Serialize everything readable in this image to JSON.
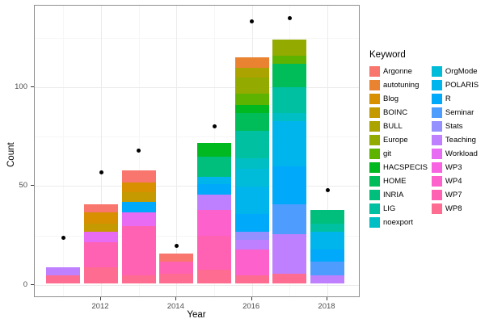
{
  "chart_data": {
    "type": "bar",
    "subtype": "stacked-bar-with-points",
    "title": "",
    "xlabel": "Year",
    "ylabel": "Count",
    "legend_title": "Keyword",
    "legend_position": "right",
    "x": [
      2011,
      2012,
      2013,
      2014,
      2015,
      2016,
      2017,
      2018
    ],
    "x_tick_labels": [
      "2012",
      "2014",
      "2016",
      "2018"
    ],
    "x_major_tick_years": [
      2012,
      2014,
      2016,
      2018
    ],
    "x_minor_grid_years": [
      2011,
      2013,
      2015,
      2017
    ],
    "y_major_ticks": [
      0,
      50,
      100
    ],
    "y_minor_gridlines": [
      25,
      75,
      125
    ],
    "ylim": [
      0,
      141
    ],
    "grid": true,
    "stack_order_bottom_to_top": [
      "WP8",
      "WP7",
      "WP4",
      "WP3",
      "Workload",
      "Teaching",
      "Stats",
      "Seminar",
      "R",
      "POLARIS",
      "OrgMode",
      "noexport",
      "LIG",
      "INRIA",
      "HOME",
      "HACSPECIS",
      "git",
      "Europe",
      "BULL",
      "BOINC",
      "Blog",
      "autotuning",
      "Argonne"
    ],
    "series": [
      {
        "name": "Argonne",
        "color": "#F8766D",
        "values": [
          0,
          4,
          6,
          4,
          0,
          0,
          0,
          0
        ]
      },
      {
        "name": "autotuning",
        "color": "#EA8331",
        "values": [
          0,
          0,
          0,
          0,
          0,
          5,
          0,
          0
        ]
      },
      {
        "name": "Blog",
        "color": "#D89000",
        "values": [
          0,
          6,
          5,
          0,
          0,
          0,
          0,
          0
        ]
      },
      {
        "name": "BOINC",
        "color": "#C49A00",
        "values": [
          0,
          4,
          5,
          0,
          0,
          0,
          0,
          0
        ]
      },
      {
        "name": "BULL",
        "color": "#ABA300",
        "values": [
          0,
          0,
          0,
          0,
          0,
          5,
          0,
          0
        ]
      },
      {
        "name": "Europe",
        "color": "#93AA00",
        "values": [
          0,
          0,
          0,
          0,
          0,
          8,
          8,
          0
        ]
      },
      {
        "name": "git",
        "color": "#5EB300",
        "values": [
          0,
          0,
          0,
          0,
          0,
          6,
          4,
          0
        ]
      },
      {
        "name": "HACSPECIS",
        "color": "#00B81F",
        "values": [
          0,
          0,
          0,
          0,
          7,
          4,
          0,
          0
        ]
      },
      {
        "name": "HOME",
        "color": "#00BC59",
        "values": [
          0,
          0,
          0,
          0,
          0,
          9,
          12,
          0
        ]
      },
      {
        "name": "INRIA",
        "color": "#00BF7D",
        "values": [
          0,
          0,
          0,
          0,
          10,
          0,
          0,
          7
        ]
      },
      {
        "name": "LIG",
        "color": "#00C0A2",
        "values": [
          0,
          0,
          0,
          0,
          0,
          14,
          13,
          4
        ]
      },
      {
        "name": "noexport",
        "color": "#00BFC4",
        "values": [
          0,
          0,
          0,
          0,
          0,
          5,
          4,
          0
        ]
      },
      {
        "name": "OrgMode",
        "color": "#00BCD8",
        "values": [
          0,
          0,
          0,
          0,
          0,
          9,
          0,
          0
        ]
      },
      {
        "name": "POLARIS",
        "color": "#00B5EC",
        "values": [
          0,
          0,
          0,
          0,
          4,
          14,
          23,
          9
        ]
      },
      {
        "name": "R",
        "color": "#00A9FA",
        "values": [
          0,
          0,
          5,
          0,
          5,
          9,
          19,
          6
        ]
      },
      {
        "name": "Seminar",
        "color": "#4F9CFF",
        "values": [
          0,
          0,
          0,
          0,
          0,
          0,
          15,
          7
        ]
      },
      {
        "name": "Stats",
        "color": "#9590FF",
        "values": [
          0,
          0,
          0,
          0,
          0,
          4,
          0,
          0
        ]
      },
      {
        "name": "Teaching",
        "color": "#BF80FF",
        "values": [
          4,
          0,
          0,
          0,
          8,
          5,
          20,
          4
        ]
      },
      {
        "name": "Workload",
        "color": "#E76BF3",
        "values": [
          0,
          5,
          7,
          0,
          0,
          0,
          0,
          0
        ]
      },
      {
        "name": "WP3",
        "color": "#F763E0",
        "values": [
          0,
          0,
          0,
          0,
          0,
          0,
          0,
          0
        ]
      },
      {
        "name": "WP4",
        "color": "#FC61CC",
        "values": [
          0,
          0,
          0,
          0,
          13,
          13,
          0,
          0
        ]
      },
      {
        "name": "WP7",
        "color": "#FF62B2",
        "values": [
          0,
          13,
          25,
          6,
          17,
          0,
          0,
          0
        ]
      },
      {
        "name": "WP8",
        "color": "#FF6C91",
        "values": [
          4,
          8,
          4,
          5,
          7,
          4,
          5,
          0
        ]
      }
    ],
    "bar_totals": [
      8,
      40,
      57,
      15,
      71,
      114,
      123,
      37
    ],
    "points": {
      "values": [
        24,
        57,
        68,
        20,
        80,
        133,
        135,
        48
      ],
      "color": "#000000"
    }
  },
  "style": {
    "panel_border": "#8f8f8f",
    "grid_major": "#ebebeb",
    "grid_minor": "#f6f6f6",
    "tick_label_color": "#4d4d4d"
  }
}
